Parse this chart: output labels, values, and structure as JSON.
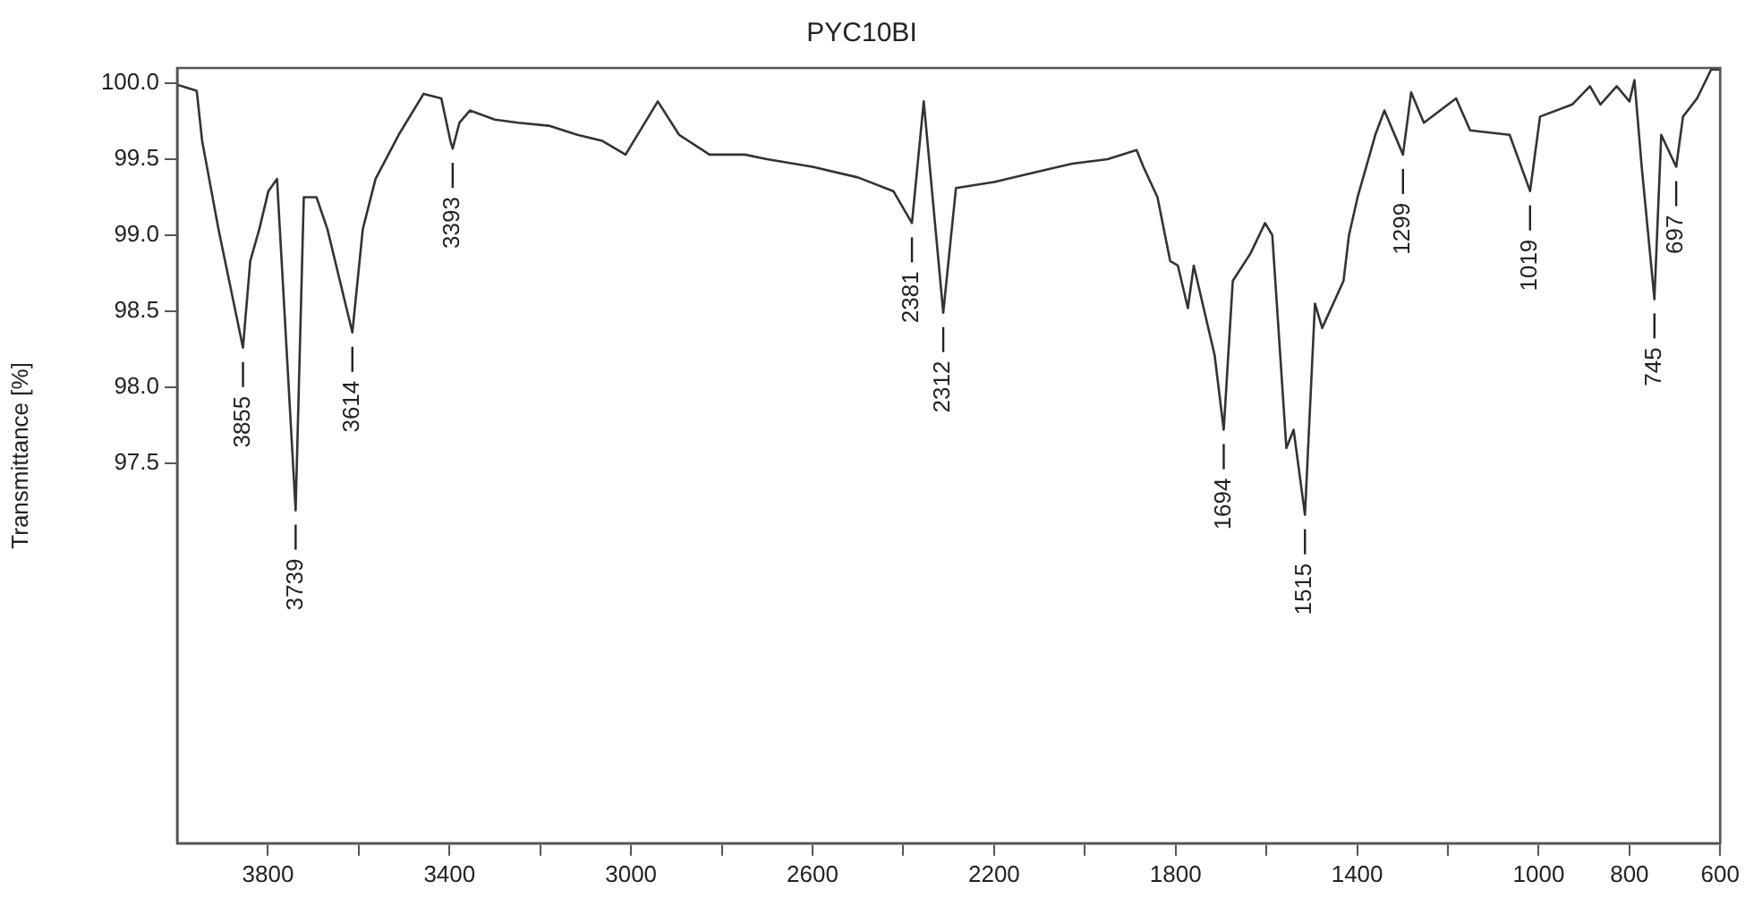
{
  "chart_data": {
    "type": "line",
    "title": "PYC10BI",
    "ylabel": "Transmittance [%]",
    "xlim": [
      4000,
      600
    ],
    "ylim": [
      95,
      100.1
    ],
    "xticks": [
      {
        "value": 3800,
        "label": "3800"
      },
      {
        "value": 3600,
        "label": null
      },
      {
        "value": 3400,
        "label": "3400"
      },
      {
        "value": 3200,
        "label": null
      },
      {
        "value": 3000,
        "label": "3000"
      },
      {
        "value": 2800,
        "label": null
      },
      {
        "value": 2600,
        "label": "2600"
      },
      {
        "value": 2400,
        "label": null
      },
      {
        "value": 2200,
        "label": "2200"
      },
      {
        "value": 2000,
        "label": null
      },
      {
        "value": 1800,
        "label": "1800"
      },
      {
        "value": 1600,
        "label": null
      },
      {
        "value": 1400,
        "label": "1400"
      },
      {
        "value": 1200,
        "label": null
      },
      {
        "value": 1000,
        "label": "1000"
      },
      {
        "value": 800,
        "label": "800"
      },
      {
        "value": 600,
        "label": "600"
      }
    ],
    "yticks": [
      {
        "value": 97.5,
        "label": "97.5"
      },
      {
        "value": 98,
        "label": "98.0"
      },
      {
        "value": 98.5,
        "label": "98.5"
      },
      {
        "value": 99,
        "label": "99.0"
      },
      {
        "value": 99.5,
        "label": "99.5"
      },
      {
        "value": 100,
        "label": "100.0"
      }
    ],
    "grid": false,
    "legend": false,
    "marker": "none",
    "line_style": "solid",
    "series": [
      {
        "color": "#333333",
        "x": [
          4000,
          3957,
          3945,
          3909,
          3855,
          3839,
          3819,
          3799,
          3780,
          3739,
          3721,
          3693,
          3669,
          3614,
          3591,
          3563,
          3512,
          3457,
          3418,
          3398,
          3393,
          3378,
          3355,
          3300,
          3248,
          3181,
          3118,
          3063,
          3012,
          2941,
          2894,
          2827,
          2749,
          2700,
          2600,
          2500,
          2422,
          2381,
          2355,
          2312,
          2284,
          2200,
          2100,
          2028,
          1950,
          1886,
          1871,
          1840,
          1812,
          1795,
          1773,
          1760,
          1714,
          1694,
          1674,
          1635,
          1603,
          1587,
          1556,
          1540,
          1515,
          1493,
          1477,
          1430,
          1418,
          1399,
          1360,
          1340,
          1299,
          1281,
          1253,
          1182,
          1151,
          1064,
          1019,
          997,
          926,
          887,
          864,
          828,
          800,
          789,
          773,
          745,
          730,
          697,
          682,
          651,
          620,
          600
        ],
        "values": [
          99.99,
          99.95,
          99.62,
          99.04,
          98.26,
          98.83,
          99.04,
          99.29,
          99.37,
          97.19,
          99.25,
          99.25,
          99.04,
          98.36,
          99.04,
          99.37,
          99.66,
          99.93,
          99.9,
          99.62,
          99.57,
          99.74,
          99.82,
          99.76,
          99.74,
          99.72,
          99.66,
          99.62,
          99.53,
          99.88,
          99.66,
          99.53,
          99.53,
          99.5,
          99.45,
          99.38,
          99.29,
          99.08,
          99.88,
          98.49,
          99.31,
          99.35,
          99.42,
          99.47,
          99.5,
          99.56,
          99.45,
          99.25,
          98.83,
          98.8,
          98.52,
          98.8,
          98.21,
          97.72,
          98.7,
          98.88,
          99.08,
          99.0,
          97.6,
          97.72,
          97.16,
          98.55,
          98.39,
          98.7,
          99.0,
          99.25,
          99.66,
          99.82,
          99.53,
          99.94,
          99.74,
          99.9,
          99.69,
          99.66,
          99.29,
          99.78,
          99.86,
          99.98,
          99.86,
          99.98,
          99.88,
          100.02,
          99.45,
          98.58,
          99.66,
          99.45,
          99.78,
          99.9,
          100.09,
          100.09
        ]
      }
    ],
    "annotations": [
      {
        "text": "3855",
        "x": 3855,
        "y": 98.26
      },
      {
        "text": "3739",
        "x": 3739,
        "y": 97.19
      },
      {
        "text": "3614",
        "x": 3614,
        "y": 98.36
      },
      {
        "text": "3393",
        "x": 3393,
        "y": 99.57
      },
      {
        "text": "2381",
        "x": 2381,
        "y": 99.08
      },
      {
        "text": "2312",
        "x": 2312,
        "y": 98.49
      },
      {
        "text": "1694",
        "x": 1694,
        "y": 97.72
      },
      {
        "text": "1515",
        "x": 1515,
        "y": 97.16
      },
      {
        "text": "1299",
        "x": 1299,
        "y": 99.53
      },
      {
        "text": "1019",
        "x": 1019,
        "y": 99.29
      },
      {
        "text": "745",
        "x": 745,
        "y": 98.58
      },
      {
        "text": "697",
        "x": 697,
        "y": 99.45
      }
    ]
  }
}
